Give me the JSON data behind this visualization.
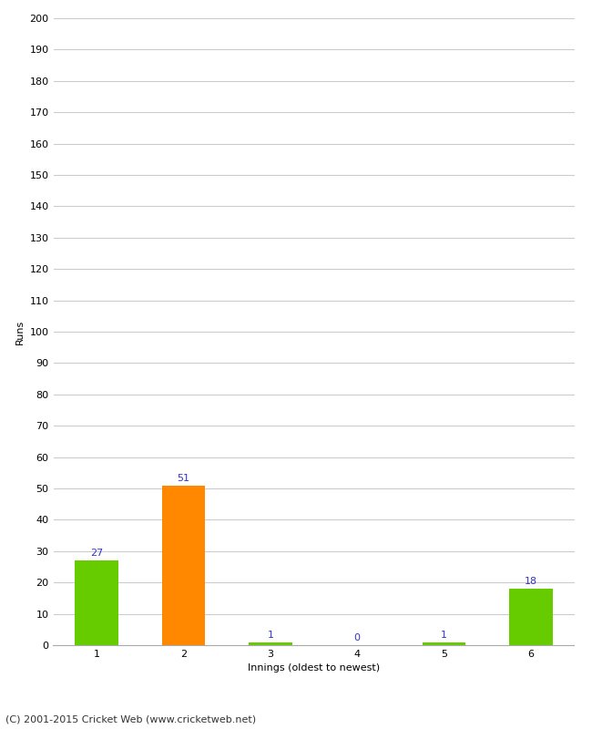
{
  "categories": [
    "1",
    "2",
    "3",
    "4",
    "5",
    "6"
  ],
  "values": [
    27,
    51,
    1,
    0,
    1,
    18
  ],
  "bar_colors": [
    "#66cc00",
    "#ff8800",
    "#66cc00",
    "#66cc00",
    "#66cc00",
    "#66cc00"
  ],
  "xlabel": "Innings (oldest to newest)",
  "ylabel": "Runs",
  "ylim": [
    0,
    200
  ],
  "yticks": [
    0,
    10,
    20,
    30,
    40,
    50,
    60,
    70,
    80,
    90,
    100,
    110,
    120,
    130,
    140,
    150,
    160,
    170,
    180,
    190,
    200
  ],
  "label_color": "#3333cc",
  "footer": "(C) 2001-2015 Cricket Web (www.cricketweb.net)",
  "background_color": "#ffffff",
  "grid_color": "#cccccc",
  "bar_label_fontsize": 8,
  "axis_tick_fontsize": 8,
  "axis_label_fontsize": 8,
  "footer_fontsize": 8,
  "bar_width": 0.5
}
